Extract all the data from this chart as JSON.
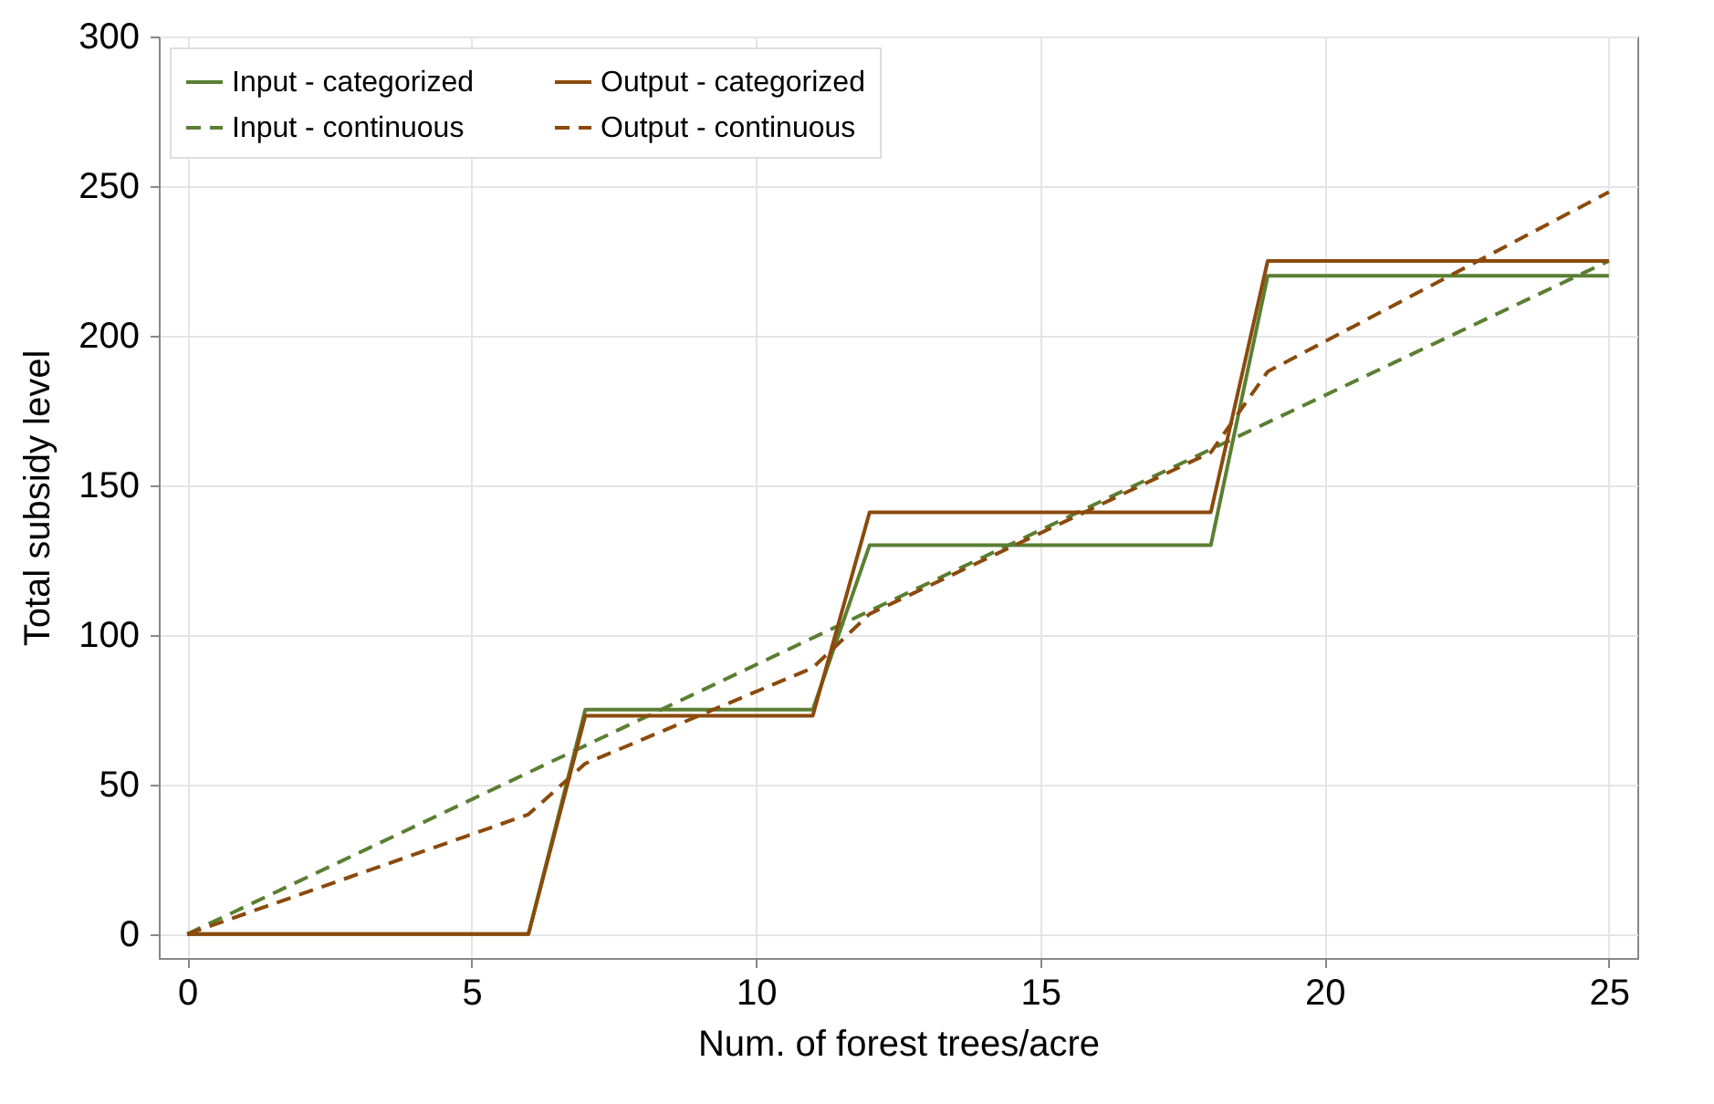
{
  "chart_data": {
    "type": "line",
    "xlabel": "Num. of forest trees/acre",
    "ylabel": "Total subsidy level",
    "xlim": [
      -0.5,
      25.5
    ],
    "xticks": [
      0,
      5,
      10,
      15,
      20,
      25
    ],
    "ylim": [
      -8,
      300
    ],
    "yticks": [
      0,
      50,
      100,
      150,
      200,
      250,
      300
    ],
    "grid": true,
    "legend": "top left",
    "series": [
      {
        "name": "Input - categorized",
        "color": "#5a7f32",
        "line_style": "solid",
        "x": [
          0,
          6,
          7,
          11,
          12,
          18,
          19,
          25
        ],
        "values": [
          0,
          0,
          75,
          75,
          130,
          130,
          220,
          220
        ]
      },
      {
        "name": "Input - continuous",
        "color": "#5a7f32",
        "line_style": "dashed",
        "x": [
          0,
          25
        ],
        "values": [
          0,
          225
        ]
      },
      {
        "name": "Output - categorized",
        "color": "#8b4a0c",
        "line_style": "solid",
        "x": [
          0,
          6,
          7,
          11,
          12,
          18,
          19,
          25
        ],
        "values": [
          0,
          0,
          73,
          73,
          141,
          141,
          225,
          225
        ]
      },
      {
        "name": "Output - continuous",
        "color": "#8b4a0c",
        "line_style": "dashed",
        "x": [
          0,
          6,
          7,
          11,
          12,
          18,
          19,
          25
        ],
        "values": [
          0,
          40,
          57,
          89,
          107,
          161,
          188,
          248
        ]
      }
    ]
  }
}
